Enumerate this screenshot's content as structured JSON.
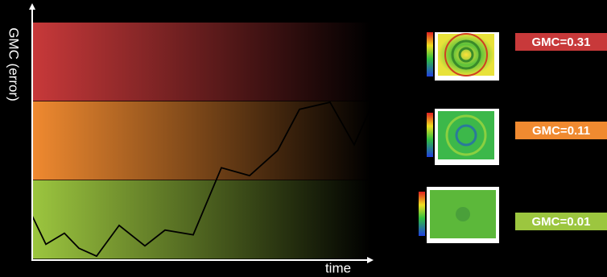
{
  "chart_data": {
    "type": "line",
    "xlabel": "time",
    "ylabel": "GMC (error)",
    "x": [
      0,
      17,
      40,
      58,
      80,
      108,
      140,
      165,
      200,
      235,
      270,
      305,
      332,
      370,
      400,
      420
    ],
    "values": [
      0.55,
      0.19,
      0.33,
      0.14,
      0.04,
      0.43,
      0.17,
      0.37,
      0.31,
      1.16,
      1.06,
      1.38,
      1.9,
      1.99,
      1.45,
      1.91
    ],
    "xlim": [
      0,
      420
    ],
    "ylim": [
      0,
      3
    ],
    "color": "#000000",
    "bands": [
      {
        "range": [
          2,
          3
        ],
        "color": "#c8393a",
        "label": "GMC=0.31"
      },
      {
        "range": [
          1,
          2
        ],
        "color": "#f08a30",
        "label": "GMC=0.11"
      },
      {
        "range": [
          0,
          1
        ],
        "color": "#9cc63f",
        "label": "GMC=0.01"
      }
    ]
  }
}
